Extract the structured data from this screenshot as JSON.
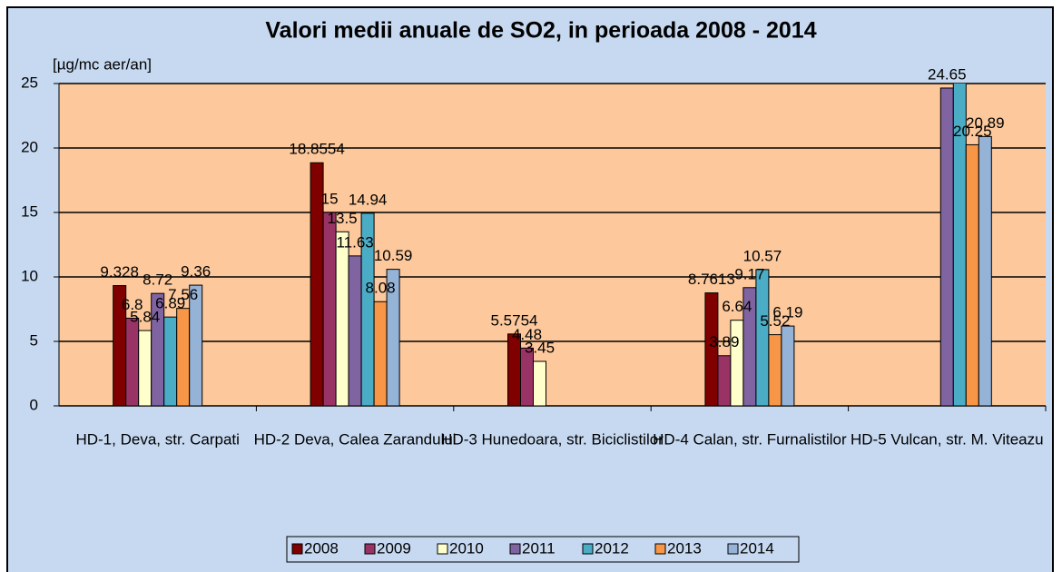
{
  "chart_data": {
    "type": "bar",
    "title": "Valori medii anuale de SO2, in perioada 2008 - 2014",
    "y_label": "[µg/mc aer/an]",
    "categories": [
      "HD-1, Deva, str. Carpati",
      "HD-2 Deva, Calea Zarandului",
      "HD-3 Hunedoara, str. Biciclistilor",
      "HD-4 Calan, str. Furnalistilor",
      "HD-5 Vulcan, str. M. Viteazu"
    ],
    "series": [
      {
        "name": "2008",
        "color": "#800000",
        "values": [
          9.328,
          18.8554,
          5.5754,
          8.7613,
          null
        ]
      },
      {
        "name": "2009",
        "color": "#993366",
        "values": [
          6.8,
          15,
          4.48,
          3.89,
          null
        ]
      },
      {
        "name": "2010",
        "color": "#ffffcc",
        "values": [
          5.84,
          13.5,
          3.45,
          6.64,
          null
        ]
      },
      {
        "name": "2011",
        "color": "#8064a2",
        "values": [
          8.72,
          11.63,
          null,
          9.17,
          24.65
        ]
      },
      {
        "name": "2012",
        "color": "#4bacc6",
        "values": [
          6.89,
          14.94,
          null,
          10.57,
          25.3
        ]
      },
      {
        "name": "2013",
        "color": "#f79646",
        "values": [
          7.56,
          8.08,
          null,
          5.52,
          20.25
        ]
      },
      {
        "name": "2014",
        "color": "#95b3d7",
        "values": [
          9.36,
          10.59,
          null,
          6.19,
          20.89
        ]
      }
    ],
    "ylim": [
      0,
      25
    ],
    "yticks": [
      0,
      5,
      10,
      15,
      20,
      25
    ],
    "grid": true,
    "legend": "bottom"
  }
}
